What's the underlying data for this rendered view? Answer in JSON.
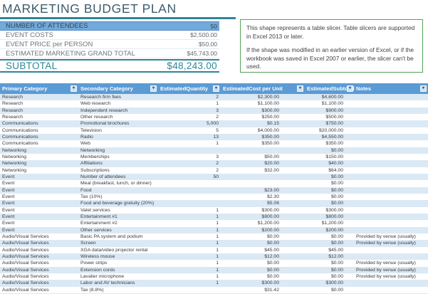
{
  "title": "MARKETING BUDGET PLAN",
  "summary": {
    "rows": [
      {
        "label": "NUMBER OF ATTENDEES",
        "value": "50"
      },
      {
        "label": "EVENT COSTS",
        "value": "$2,500.00"
      },
      {
        "label": "EVENT PRICE per PERSON",
        "value": "$50.00"
      },
      {
        "label": "ESTIMATED MARKETING GRAND TOTAL",
        "value": "$45,743.00"
      }
    ],
    "subtotal_label": "SUBTOTAL",
    "subtotal_value": "$48,243.00"
  },
  "slicer_note": {
    "line1": "This shape represents a table slicer. Table slicers are supported in Excel 2013 or later.",
    "line2": "If the shape was modified in an earlier version of Excel, or if the workbook was saved in Excel 2007 or earlier, the slicer can't be used."
  },
  "table": {
    "columns": [
      "Primary Category",
      "Secondary Category",
      "EstimatedQuantity",
      "EstimatedCost per Unit",
      "EstimatedSubtotal",
      "Notes"
    ],
    "filter_icon": "▾",
    "rows": [
      {
        "primary": "Research",
        "secondary": "Research firm fees",
        "quantity": "2",
        "cost": "$2,300.00",
        "subtotal": "$4,600.00",
        "notes": ""
      },
      {
        "primary": "Research",
        "secondary": "Web research",
        "quantity": "1",
        "cost": "$1,100.00",
        "subtotal": "$1,100.00",
        "notes": ""
      },
      {
        "primary": "Research",
        "secondary": "Independent research",
        "quantity": "3",
        "cost": "$300.00",
        "subtotal": "$900.00",
        "notes": ""
      },
      {
        "primary": "Research",
        "secondary": "Other research",
        "quantity": "2",
        "cost": "$250.00",
        "subtotal": "$500.00",
        "notes": ""
      },
      {
        "primary": "Communications",
        "secondary": "Promotional brochures",
        "quantity": "5,000",
        "cost": "$0.15",
        "subtotal": "$750.00",
        "notes": ""
      },
      {
        "primary": "Communications",
        "secondary": "Television",
        "quantity": "5",
        "cost": "$4,000.00",
        "subtotal": "$20,000.00",
        "notes": ""
      },
      {
        "primary": "Communications",
        "secondary": "Radio",
        "quantity": "13",
        "cost": "$350.00",
        "subtotal": "$4,550.00",
        "notes": ""
      },
      {
        "primary": "Communications",
        "secondary": "Web",
        "quantity": "1",
        "cost": "$350.00",
        "subtotal": "$350.00",
        "notes": ""
      },
      {
        "primary": "Networking",
        "secondary": "Networking",
        "quantity": "",
        "cost": "",
        "subtotal": "$0.00",
        "notes": ""
      },
      {
        "primary": "Networking",
        "secondary": "Memberships",
        "quantity": "3",
        "cost": "$50.00",
        "subtotal": "$150.00",
        "notes": ""
      },
      {
        "primary": "Networking",
        "secondary": "Affiliations",
        "quantity": "2",
        "cost": "$20.00",
        "subtotal": "$40.00",
        "notes": ""
      },
      {
        "primary": "Networking",
        "secondary": "Subscriptions",
        "quantity": "2",
        "cost": "$32.00",
        "subtotal": "$64.00",
        "notes": ""
      },
      {
        "primary": "Event",
        "secondary": "Number of attendees",
        "quantity": "50",
        "cost": "",
        "subtotal": "$0.00",
        "notes": ""
      },
      {
        "primary": "Event",
        "secondary": "Meal (breakfast, lunch, or dinner)",
        "quantity": "",
        "cost": "",
        "subtotal": "$0.00",
        "notes": ""
      },
      {
        "primary": "Event",
        "secondary": "Food",
        "quantity": "",
        "cost": "$23.00",
        "subtotal": "$0.00",
        "notes": ""
      },
      {
        "primary": "Event",
        "secondary": "Tax (10%)",
        "quantity": "",
        "cost": "$2.30",
        "subtotal": "$0.00",
        "notes": ""
      },
      {
        "primary": "Event",
        "secondary": "Food and beverage gratuity (20%)",
        "quantity": "",
        "cost": "$5.06",
        "subtotal": "$0.00",
        "notes": ""
      },
      {
        "primary": "Event",
        "secondary": "Valet services",
        "quantity": "1",
        "cost": "$300.00",
        "subtotal": "$300.00",
        "notes": ""
      },
      {
        "primary": "Event",
        "secondary": "Entertainment #1",
        "quantity": "1",
        "cost": "$800.00",
        "subtotal": "$800.00",
        "notes": ""
      },
      {
        "primary": "Event",
        "secondary": "Entertainment #2",
        "quantity": "1",
        "cost": "$1,200.00",
        "subtotal": "$1,200.00",
        "notes": ""
      },
      {
        "primary": "Event",
        "secondary": "Other services",
        "quantity": "1",
        "cost": "$200.00",
        "subtotal": "$200.00",
        "notes": ""
      },
      {
        "primary": "Audio/Visual Services",
        "secondary": "Basic PA system and podium",
        "quantity": "1",
        "cost": "$0.00",
        "subtotal": "$0.00",
        "notes": "Provided by venue (usually)"
      },
      {
        "primary": "Audio/Visual Services",
        "secondary": "Screen",
        "quantity": "1",
        "cost": "$0.00",
        "subtotal": "$0.00",
        "notes": "Provided by venue (usually)"
      },
      {
        "primary": "Audio/Visual Services",
        "secondary": "XGA data/video projector rental",
        "quantity": "1",
        "cost": "$45.00",
        "subtotal": "$45.00",
        "notes": ""
      },
      {
        "primary": "Audio/Visual Services",
        "secondary": "Wireless mouse",
        "quantity": "1",
        "cost": "$12.00",
        "subtotal": "$12.00",
        "notes": ""
      },
      {
        "primary": "Audio/Visual Services",
        "secondary": "Power strips",
        "quantity": "1",
        "cost": "$0.00",
        "subtotal": "$0.00",
        "notes": "Provided by venue (usually)"
      },
      {
        "primary": "Audio/Visual Services",
        "secondary": "Extension cords",
        "quantity": "1",
        "cost": "$0.00",
        "subtotal": "$0.00",
        "notes": "Provided by venue (usually)"
      },
      {
        "primary": "Audio/Visual Services",
        "secondary": "Lavalier microphone",
        "quantity": "1",
        "cost": "$0.00",
        "subtotal": "$0.00",
        "notes": "Provided by venue (usually)"
      },
      {
        "primary": "Audio/Visual Services",
        "secondary": "Labor and AV technicians",
        "quantity": "1",
        "cost": "$300.00",
        "subtotal": "$300.00",
        "notes": ""
      },
      {
        "primary": "Audio/Visual Services",
        "secondary": "Tax (8.8%)",
        "quantity": "",
        "cost": "$31.42",
        "subtotal": "$0.00",
        "notes": ""
      }
    ]
  },
  "colors": {
    "title-color": "#3d5c6b",
    "accent-teal": "#2e8696",
    "highlight-blue": "#72aadb",
    "header-bg": "#5b9bd5",
    "row-alt": "#dbe9f5",
    "slicer-border": "#55a255"
  }
}
